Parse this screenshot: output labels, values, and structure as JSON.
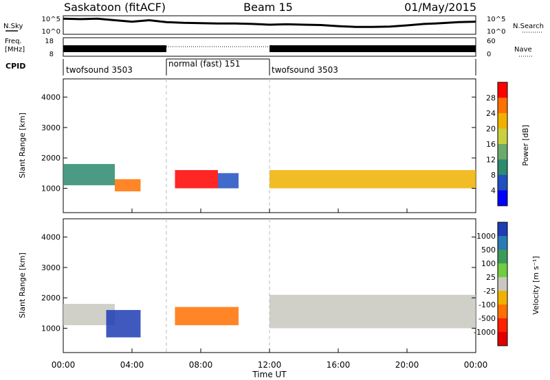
{
  "header": {
    "station": "Saskatoon (fitACF)",
    "beam": "Beam 15",
    "date": "01/May/2015"
  },
  "noise_panel": {
    "left_label": "N.Sky",
    "right_label": "N.Search",
    "left_ticks": [
      "10^5",
      "10^0"
    ],
    "right_ticks": [
      "10^5",
      "10^0"
    ]
  },
  "freq_panel": {
    "left_label_1": "Freq.",
    "left_label_2": "[MHz]",
    "right_label": "Nave",
    "left_ticks": [
      "18",
      "8"
    ],
    "right_ticks": [
      "60",
      "0"
    ]
  },
  "cpid_panel": {
    "label": "CPID",
    "segments": [
      {
        "name": "twofsound 3503",
        "start_hour": 0,
        "end_hour": 6
      },
      {
        "name": "normal (fast) 151",
        "start_hour": 6,
        "end_hour": 12
      },
      {
        "name": "twofsound 3503",
        "start_hour": 12,
        "end_hour": 24
      }
    ]
  },
  "x_axis": {
    "label": "Time UT",
    "ticks": [
      "00:00",
      "04:00",
      "08:00",
      "12:00",
      "16:00",
      "20:00",
      "00:00"
    ],
    "range_hours": [
      0,
      24
    ]
  },
  "power_panel": {
    "ylabel": "Slant Range [km]",
    "yticks": [
      "1000",
      "2000",
      "3000",
      "4000"
    ],
    "ylim": [
      200,
      4600
    ],
    "colorbar_label": "Power [dB]",
    "colorbar_ticks": [
      "4",
      "8",
      "12",
      "16",
      "20",
      "24",
      "28"
    ],
    "colorbar_colors": [
      "#0000ff",
      "#2050c0",
      "#2c8a6e",
      "#6aaa6a",
      "#c8d040",
      "#f0b000",
      "#ff7000",
      "#ff0000"
    ]
  },
  "velocity_panel": {
    "ylabel": "Slant Range [km]",
    "yticks": [
      "1000",
      "2000",
      "3000",
      "4000"
    ],
    "ylim": [
      200,
      4600
    ],
    "colorbar_label": "Velocity [m s⁻¹]",
    "colorbar_ticks": [
      "1000",
      "500",
      "100",
      "25",
      "-25",
      "-100",
      "-500",
      "-1000"
    ],
    "colorbar_colors": [
      "#1e3cb4",
      "#2a7ab4",
      "#3c9a5a",
      "#70cc40",
      "#c8c8c0",
      "#f0b000",
      "#ff7000",
      "#ff2000",
      "#e00000"
    ]
  },
  "chart_data": [
    {
      "type": "line",
      "title": "Saskatoon (fitACF)",
      "series_left": {
        "x_hours": [
          0,
          1,
          2,
          3,
          4,
          5,
          6,
          7,
          8,
          9,
          10,
          11,
          12,
          13,
          14,
          15,
          16,
          17,
          18,
          19,
          20,
          21,
          22,
          23,
          24
        ],
        "values_log10": [
          4.2,
          4.1,
          4.2,
          3.8,
          3.4,
          3.8,
          3.3,
          3.1,
          3.0,
          2.9,
          2.9,
          2.8,
          2.6,
          2.7,
          2.6,
          2.5,
          2.2,
          2.0,
          2.0,
          2.1,
          2.4,
          2.8,
          3.0,
          3.3,
          3.4
        ]
      }
    },
    {
      "type": "line",
      "series_left": {
        "x_hours": [
          0,
          6,
          6,
          12,
          12,
          24
        ],
        "values_mhz": [
          11.5,
          11.5,
          10.2,
          10.2,
          11.5,
          11.5
        ]
      }
    },
    {
      "type": "heatmap",
      "xlabel": "Time UT",
      "ylabel": "Slant Range [km]",
      "xlim": [
        0,
        24
      ],
      "ylim": [
        200,
        4600
      ],
      "bands": [
        {
          "x_start": 0.0,
          "x_end": 3.0,
          "r_low": 1100,
          "r_high": 1800,
          "level": "Power 8-16 dB"
        },
        {
          "x_start": 3.0,
          "x_end": 4.5,
          "r_low": 900,
          "r_high": 1300,
          "level": "Power 24-28 dB"
        },
        {
          "x_start": 6.5,
          "x_end": 9.0,
          "r_low": 1000,
          "r_high": 1600,
          "level": "Power 28+ dB"
        },
        {
          "x_start": 9.0,
          "x_end": 10.2,
          "r_low": 1000,
          "r_high": 1500,
          "level": "Power 8-12 dB"
        },
        {
          "x_start": 12.0,
          "x_end": 24.0,
          "r_low": 1000,
          "r_high": 1600,
          "level": "Power 20-28 dB"
        }
      ]
    },
    {
      "type": "heatmap",
      "xlabel": "Time UT",
      "ylabel": "Slant Range [km]",
      "xlim": [
        0,
        24
      ],
      "ylim": [
        200,
        4600
      ],
      "bands": [
        {
          "x_start": 0.0,
          "x_end": 3.0,
          "r_low": 1100,
          "r_high": 1800,
          "level": "Velocity -25 to 25"
        },
        {
          "x_start": 2.5,
          "x_end": 4.5,
          "r_low": 700,
          "r_high": 1600,
          "level": "Velocity 500-1000"
        },
        {
          "x_start": 6.5,
          "x_end": 10.2,
          "r_low": 1100,
          "r_high": 1700,
          "level": "Velocity -100 to -500"
        },
        {
          "x_start": 12.0,
          "x_end": 24.0,
          "r_low": 1000,
          "r_high": 2100,
          "level": "Velocity -25 to 25"
        }
      ]
    }
  ]
}
